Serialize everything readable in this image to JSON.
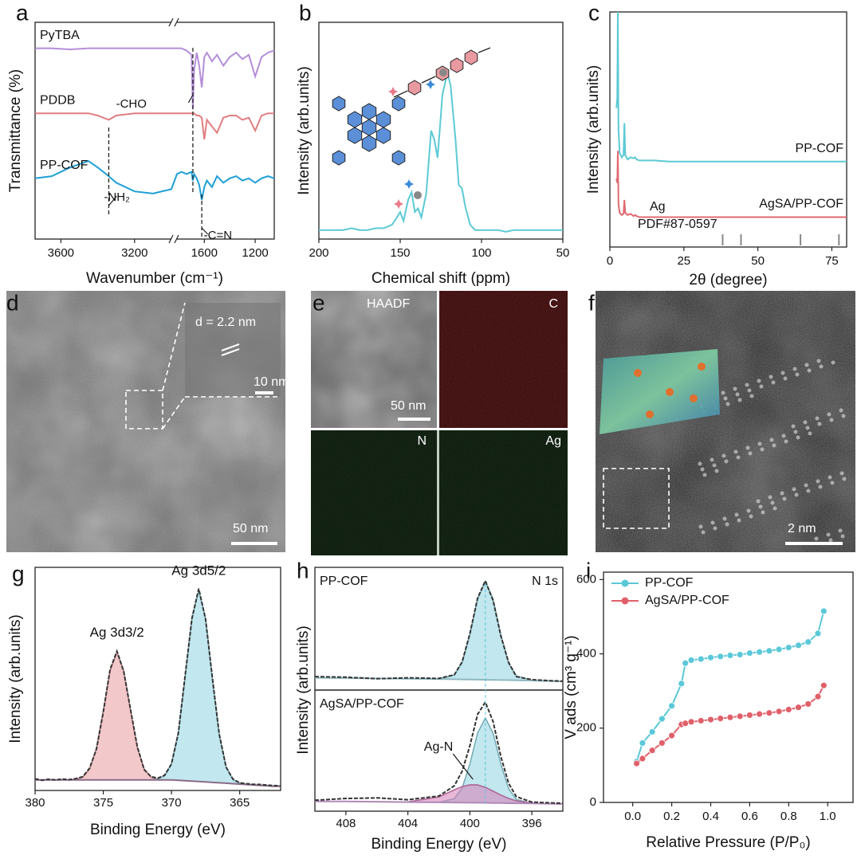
{
  "chart_data": [
    {
      "type": "line",
      "panel": "a",
      "xlabel": "Wavenumber (cm⁻¹)",
      "ylabel": "Transmittance (%)",
      "xlim": [
        3740,
        1050
      ],
      "xbreak": [
        3000,
        1815
      ],
      "xticks": [
        3600,
        3200,
        1600,
        1200
      ],
      "ylim": [
        0,
        100
      ],
      "x": [
        3740,
        3650,
        3550,
        3450,
        3400,
        3340,
        3300,
        3200,
        3100,
        3000,
        1815,
        1780,
        1740,
        1700,
        1690,
        1680,
        1660,
        1640,
        1620,
        1600,
        1580,
        1540,
        1500,
        1450,
        1400,
        1350,
        1300,
        1250,
        1200,
        1150,
        1100,
        1050
      ],
      "series": [
        {
          "name": "PyTBA",
          "color": "#b48ed8",
          "values": [
            88,
            88,
            87.5,
            88,
            88,
            88,
            88,
            88,
            88,
            88,
            88,
            88,
            87,
            85,
            60,
            78,
            86,
            80,
            70,
            84,
            86,
            82,
            85,
            80,
            84,
            86,
            83,
            85,
            75,
            84,
            86,
            87
          ]
        },
        {
          "name": "PDDB",
          "color": "#e07e80",
          "values": [
            58,
            58,
            58,
            58,
            57,
            55,
            57,
            58,
            58,
            58,
            58,
            58,
            58,
            58,
            58,
            58,
            57,
            57,
            56,
            46,
            55,
            52,
            49,
            56,
            57,
            57,
            55,
            56,
            50,
            57,
            58,
            58
          ]
        },
        {
          "name": "PP-COF",
          "color": "#1f9fd6",
          "values": [
            28,
            29,
            33,
            36,
            33,
            29,
            26,
            22,
            21,
            23,
            30,
            31,
            30,
            31,
            27,
            30,
            28,
            25,
            18,
            24,
            27,
            24,
            29,
            26,
            28,
            29,
            27,
            28,
            26,
            28,
            29,
            28
          ]
        }
      ],
      "annotations": [
        {
          "text": "-CHO",
          "x": 1690
        },
        {
          "text": "-NH₂",
          "x": 3340
        },
        {
          "text": "-C=N",
          "x": 1620
        }
      ]
    },
    {
      "type": "line",
      "panel": "b",
      "xlabel": "Chemical shift (ppm)",
      "ylabel": "Intensity (arb.units)",
      "xlim": [
        200,
        50
      ],
      "xticks": [
        200,
        150,
        100,
        50
      ],
      "ylim": [
        0,
        120
      ],
      "x": [
        200,
        195,
        190,
        185,
        180,
        175,
        170,
        165,
        160,
        155,
        152,
        150,
        148,
        145,
        143,
        141,
        139,
        137,
        134,
        131,
        129,
        127,
        124,
        121,
        119,
        116,
        114,
        112,
        110,
        107,
        104,
        100,
        95,
        90,
        85,
        80,
        75,
        70,
        65,
        60,
        55,
        50
      ],
      "series": [
        {
          "color": "#5ccad4",
          "values": [
            5,
            5,
            5,
            5,
            6,
            5,
            5,
            6,
            6,
            8,
            12,
            15,
            10,
            22,
            26,
            15,
            17,
            12,
            25,
            60,
            55,
            45,
            80,
            92,
            85,
            55,
            30,
            28,
            18,
            8,
            5,
            5,
            5,
            5,
            4,
            5,
            5,
            5,
            5,
            5,
            5,
            5
          ]
        }
      ]
    },
    {
      "type": "line",
      "panel": "c",
      "xlabel": "2θ (degree)",
      "ylabel": "Intensity (arb.units)",
      "xlim": [
        0,
        80
      ],
      "xticks": [
        0,
        25,
        50,
        75
      ],
      "ylim": [
        -10,
        100
      ],
      "x": [
        2.2,
        2.5,
        2.7,
        2.9,
        3.3,
        4,
        4.6,
        4.9,
        5.2,
        6,
        7,
        8,
        8.5,
        9,
        10,
        15,
        20,
        30,
        40,
        50,
        60,
        70,
        80
      ],
      "series": [
        {
          "name": "PP-COF",
          "color": "#5ccad4",
          "values": [
            55,
            60,
            100,
            45,
            34,
            32,
            33,
            48,
            33,
            31,
            32,
            31.5,
            32,
            31,
            30.5,
            30.5,
            30,
            30,
            30,
            30,
            30,
            30,
            30
          ]
        },
        {
          "name": "AgSA/PP-COF",
          "color": "#e06a70",
          "values": [
            22,
            20,
            35,
            10,
            6,
            5,
            5.5,
            12,
            6,
            5,
            5.5,
            4.5,
            5,
            4.5,
            4,
            4,
            4,
            4,
            4,
            4,
            4,
            4,
            4
          ]
        }
      ],
      "reference": {
        "name": "Ag",
        "label": "PDF#87-0597",
        "color": "#888888",
        "positions": [
          38.1,
          44.3,
          64.4,
          77.4
        ]
      }
    },
    {
      "type": "xps",
      "panel": "g",
      "xlabel": "Binding Energy (eV)",
      "ylabel": "Intensity (arb.units)",
      "xlim": [
        380,
        362
      ],
      "xticks": [
        380,
        375,
        370,
        365
      ],
      "ylim": [
        0,
        105
      ],
      "x": [
        380,
        379.5,
        379,
        378.5,
        378,
        377.5,
        377,
        376.5,
        376,
        375.5,
        375,
        374.5,
        374,
        373.5,
        373,
        372.5,
        372,
        371.5,
        371,
        370.5,
        370,
        369.5,
        369,
        368.5,
        368,
        367.5,
        367,
        366.5,
        366,
        365.5,
        365,
        364.5,
        364,
        363.5,
        363,
        362.5,
        362
      ],
      "background": {
        "color": "#8a6c8a",
        "values": [
          5,
          5,
          5,
          5,
          5,
          5,
          5,
          5,
          5,
          5,
          5,
          5,
          5,
          5,
          5,
          5,
          5,
          5,
          5,
          5,
          5,
          4.8,
          4.6,
          4.4,
          4.2,
          4,
          3.8,
          3.6,
          3.4,
          3.2,
          3,
          2.8,
          2.6,
          2.4,
          2.2,
          2,
          2
        ]
      },
      "components": [
        {
          "name": "Ag 3d3/2",
          "color": "#e89aa0",
          "values": [
            5,
            5,
            5,
            5,
            5,
            5,
            5.2,
            6.3,
            10.1,
            20,
            37.4,
            56.4,
            65,
            56.4,
            37.4,
            20,
            10.1,
            6.3,
            5.2,
            5,
            5,
            4.8,
            4.6,
            4.4,
            4.2,
            4,
            3.8,
            3.6,
            3.4,
            3.2,
            3,
            2.8,
            2.6,
            2.4,
            2.2,
            2,
            2
          ]
        },
        {
          "name": "Ag 3d5/2",
          "color": "#8fd3e0",
          "values": [
            5,
            5,
            5,
            5,
            5,
            5,
            5,
            5,
            5,
            5,
            5,
            5,
            5,
            5,
            5,
            5,
            5,
            5,
            5.4,
            6.9,
            12.7,
            27.3,
            53.2,
            81.4,
            94.2,
            81,
            52.4,
            26.1,
            11.1,
            5.1,
            3.4,
            2.8,
            2.6,
            2.4,
            2.2,
            2,
            2
          ]
        }
      ],
      "raw": {
        "color": "#333333",
        "values": [
          5.5,
          4.8,
          5.3,
          5.0,
          5.4,
          5.1,
          5.6,
          6.5,
          10.5,
          19.5,
          37,
          57,
          65.5,
          56,
          38,
          20.5,
          9.8,
          6.5,
          5.8,
          7.2,
          12.5,
          27,
          54,
          81,
          95,
          80.5,
          53,
          26.5,
          11,
          5.4,
          3.6,
          3.2,
          2.9,
          2.8,
          2.5,
          2.3,
          2.2
        ]
      }
    },
    {
      "type": "xps",
      "panel": "h",
      "ylabel": "Intensity (arb.units)",
      "sample": "PP-COF",
      "core_level": "N 1s",
      "xlim": [
        410,
        394
      ],
      "ylim": [
        0,
        100
      ],
      "x": [
        410,
        408,
        406,
        404,
        402,
        401,
        400.5,
        400,
        399.5,
        399,
        398.5,
        398,
        397.5,
        397,
        396,
        395,
        394
      ],
      "background": {
        "color": "#8fb8c0",
        "values": [
          10,
          9.8,
          9.5,
          9.2,
          9,
          8.8,
          8.7,
          8.6,
          8.5,
          8.4,
          8.3,
          8.2,
          8.1,
          8,
          7.8,
          7.4,
          7
        ]
      },
      "components": [
        {
          "color": "#8fd3e0",
          "values": [
            10,
            9.8,
            9.5,
            9.2,
            9.1,
            12.3,
            22.5,
            45.2,
            74.3,
            88.4,
            74.1,
            44.8,
            21.9,
            11.5,
            7.9,
            7.4,
            7
          ]
        }
      ],
      "raw": {
        "color": "#333333",
        "values": [
          11,
          10.5,
          9.2,
          10,
          9.5,
          12.5,
          23,
          46,
          75,
          89,
          73,
          44,
          22.5,
          11,
          8.5,
          7.8,
          7.2
        ]
      }
    },
    {
      "type": "xps",
      "xlabel": "Binding Energy (eV)",
      "sample": "AgSA/PP-COF",
      "xlim": [
        410,
        394
      ],
      "xticks": [
        408,
        404,
        400,
        396
      ],
      "ylim": [
        0,
        100
      ],
      "x": [
        410,
        408,
        406,
        404,
        402,
        401,
        400.5,
        400,
        399.5,
        399,
        398.5,
        398,
        397.5,
        397,
        396,
        395,
        394
      ],
      "background": {
        "color": "#b08ab8",
        "values": [
          8,
          8,
          7.8,
          7.5,
          7.3,
          7.2,
          7.1,
          7,
          7,
          6.9,
          6.8,
          6.7,
          6.6,
          6.5,
          6.4,
          6.2,
          6
        ]
      },
      "components": [
        {
          "color": "#8fd3e0",
          "values": [
            8,
            8,
            7.8,
            7.5,
            7.4,
            10.3,
            19.1,
            39,
            64.6,
            76.9,
            64.4,
            38.7,
            18.6,
            9.6,
            6.5,
            6.2,
            6
          ]
        },
        {
          "color": "#d77bb8",
          "values": [
            8,
            8,
            7.8,
            7.7,
            11.7,
            17.6,
            20.3,
            21.8,
            21.7,
            19.7,
            16.6,
            13.3,
            10.5,
            8.5,
            6.8,
            6.2,
            6
          ]
        }
      ],
      "raw": {
        "color": "#333333",
        "values": [
          9,
          10.5,
          11,
          9.5,
          12.5,
          21,
          33,
          54,
          80,
          90,
          74,
          45,
          23,
          12,
          7.5,
          7,
          6.5
        ]
      },
      "annotations": [
        {
          "text": "Ag-N",
          "x": 399.8
        }
      ]
    },
    {
      "type": "line",
      "panel": "i",
      "markers": true,
      "legend": "upper left",
      "xlabel": "Relative Pressure (P/P₀)",
      "ylabel": "V ads (cm³ g⁻¹)",
      "xlim": [
        -0.15,
        1.13
      ],
      "xticks": [
        {
          "value": 0,
          "label": "0.0"
        },
        0.2,
        0.4,
        0.6,
        0.8,
        {
          "value": 1,
          "label": "1.0"
        }
      ],
      "ylim": [
        0,
        620
      ],
      "yticks": [
        0,
        200,
        400,
        600
      ],
      "x": [
        0.02,
        0.05,
        0.1,
        0.15,
        0.2,
        0.25,
        0.27,
        0.3,
        0.35,
        0.4,
        0.45,
        0.5,
        0.55,
        0.6,
        0.65,
        0.7,
        0.75,
        0.8,
        0.85,
        0.9,
        0.95,
        0.98
      ],
      "series": [
        {
          "name": "PP-COF",
          "color": "#5bc8d8",
          "values": [
            110,
            160,
            190,
            225,
            260,
            320,
            375,
            383,
            386,
            390,
            393,
            396,
            398,
            402,
            405,
            408,
            412,
            417,
            423,
            432,
            455,
            515
          ]
        },
        {
          "name": "AgSA/PP-COF",
          "color": "#e0606a",
          "values": [
            105,
            118,
            140,
            160,
            180,
            210,
            213,
            217,
            220,
            223,
            226,
            229,
            232,
            235,
            238,
            241,
            245,
            250,
            256,
            265,
            285,
            315
          ]
        }
      ]
    }
  ],
  "images": [
    {
      "panel": "d",
      "texts": [
        "d = 2.2 nm",
        "10 nm",
        "50 nm"
      ]
    },
    {
      "panel": "e",
      "texts": [
        "HAADF",
        "C",
        "N",
        "Ag",
        "50 nm"
      ]
    },
    {
      "panel": "f",
      "texts": [
        "2 nm"
      ]
    }
  ]
}
